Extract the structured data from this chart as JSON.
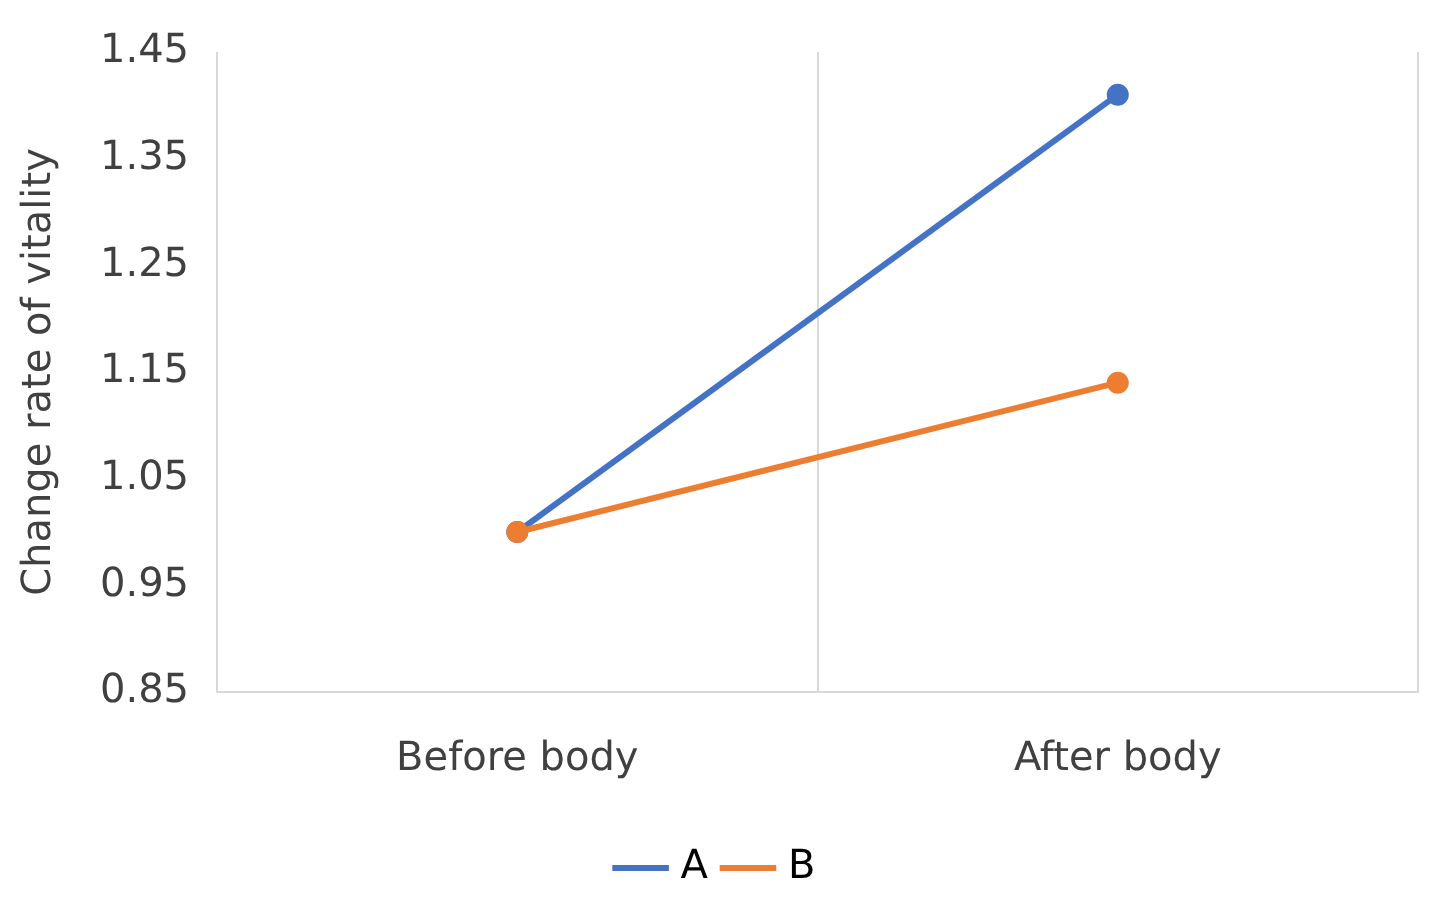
{
  "chart_data": {
    "type": "line",
    "ylabel": "Change rate of vitality",
    "categories": [
      "Before body",
      "After body"
    ],
    "series": [
      {
        "name": "A",
        "color": "#4472c4",
        "values": [
          1.0,
          1.41
        ]
      },
      {
        "name": "B",
        "color": "#ed7d31",
        "values": [
          1.0,
          1.14
        ]
      }
    ],
    "ylim": [
      0.85,
      1.45
    ],
    "yticks": [
      0.85,
      0.95,
      1.05,
      1.15,
      1.25,
      1.35,
      1.45
    ],
    "grid": "x",
    "legend": "bottom",
    "marker": "circle",
    "line_style": "solid"
  }
}
